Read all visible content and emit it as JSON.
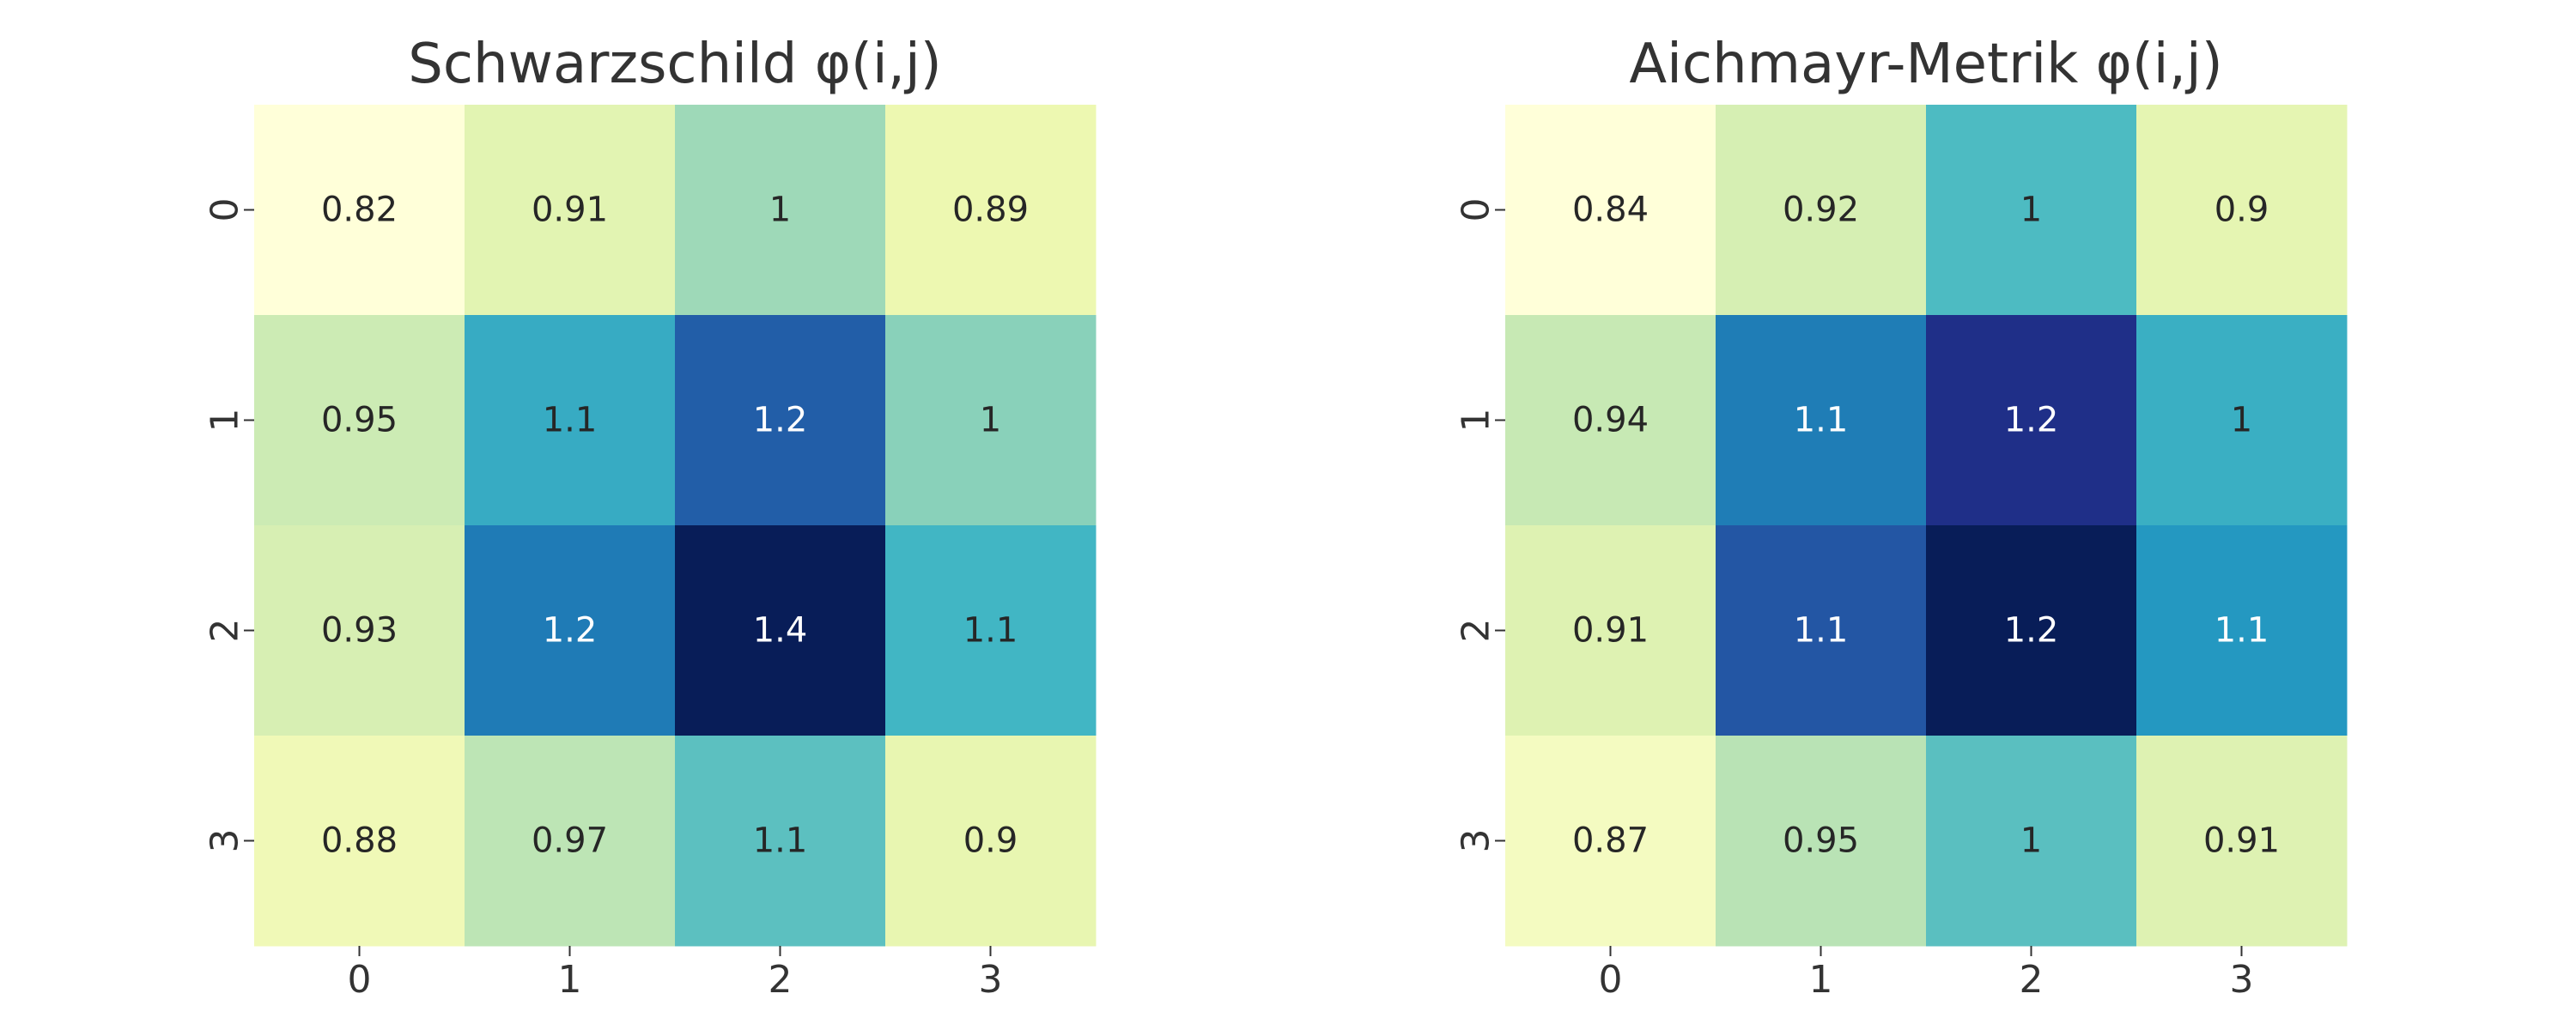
{
  "chart_data": [
    {
      "type": "heatmap",
      "title": "Schwarzschild φ(i,j)",
      "x_ticks": [
        "0",
        "1",
        "2",
        "3"
      ],
      "y_ticks": [
        "0",
        "1",
        "2",
        "3"
      ],
      "labels": [
        [
          "0.82",
          "0.91",
          "1",
          "0.89"
        ],
        [
          "0.95",
          "1.1",
          "1.2",
          "1"
        ],
        [
          "0.93",
          "1.2",
          "1.4",
          "1.1"
        ],
        [
          "0.88",
          "0.97",
          "1.1",
          "0.9"
        ]
      ],
      "values": [
        [
          0.82,
          0.91,
          1.0,
          0.89
        ],
        [
          0.95,
          1.12,
          1.24,
          1.02
        ],
        [
          0.93,
          1.2,
          1.38,
          1.1
        ],
        [
          0.88,
          0.97,
          1.07,
          0.9
        ]
      ],
      "colormap": "YlGnBu",
      "colorbar": false
    },
    {
      "type": "heatmap",
      "title": "Aichmayr-Metrik φ(i,j)",
      "x_ticks": [
        "0",
        "1",
        "2",
        "3"
      ],
      "y_ticks": [
        "0",
        "1",
        "2",
        "3"
      ],
      "labels": [
        [
          "0.84",
          "0.92",
          "1",
          "0.9"
        ],
        [
          "0.94",
          "1.1",
          "1.2",
          "1"
        ],
        [
          "0.91",
          "1.1",
          "1.2",
          "1.1"
        ],
        [
          "0.87",
          "0.95",
          "1",
          "0.91"
        ]
      ],
      "values": [
        [
          0.84,
          0.92,
          1.03,
          0.9
        ],
        [
          0.94,
          1.11,
          1.2,
          1.05
        ],
        [
          0.91,
          1.15,
          1.24,
          1.08
        ],
        [
          0.87,
          0.95,
          1.02,
          0.91
        ]
      ],
      "colormap": "YlGnBu",
      "colorbar": false
    }
  ],
  "colors": {
    "text_dark": "#262626",
    "text_light": "#ffffff",
    "axis_text": "#333333"
  }
}
